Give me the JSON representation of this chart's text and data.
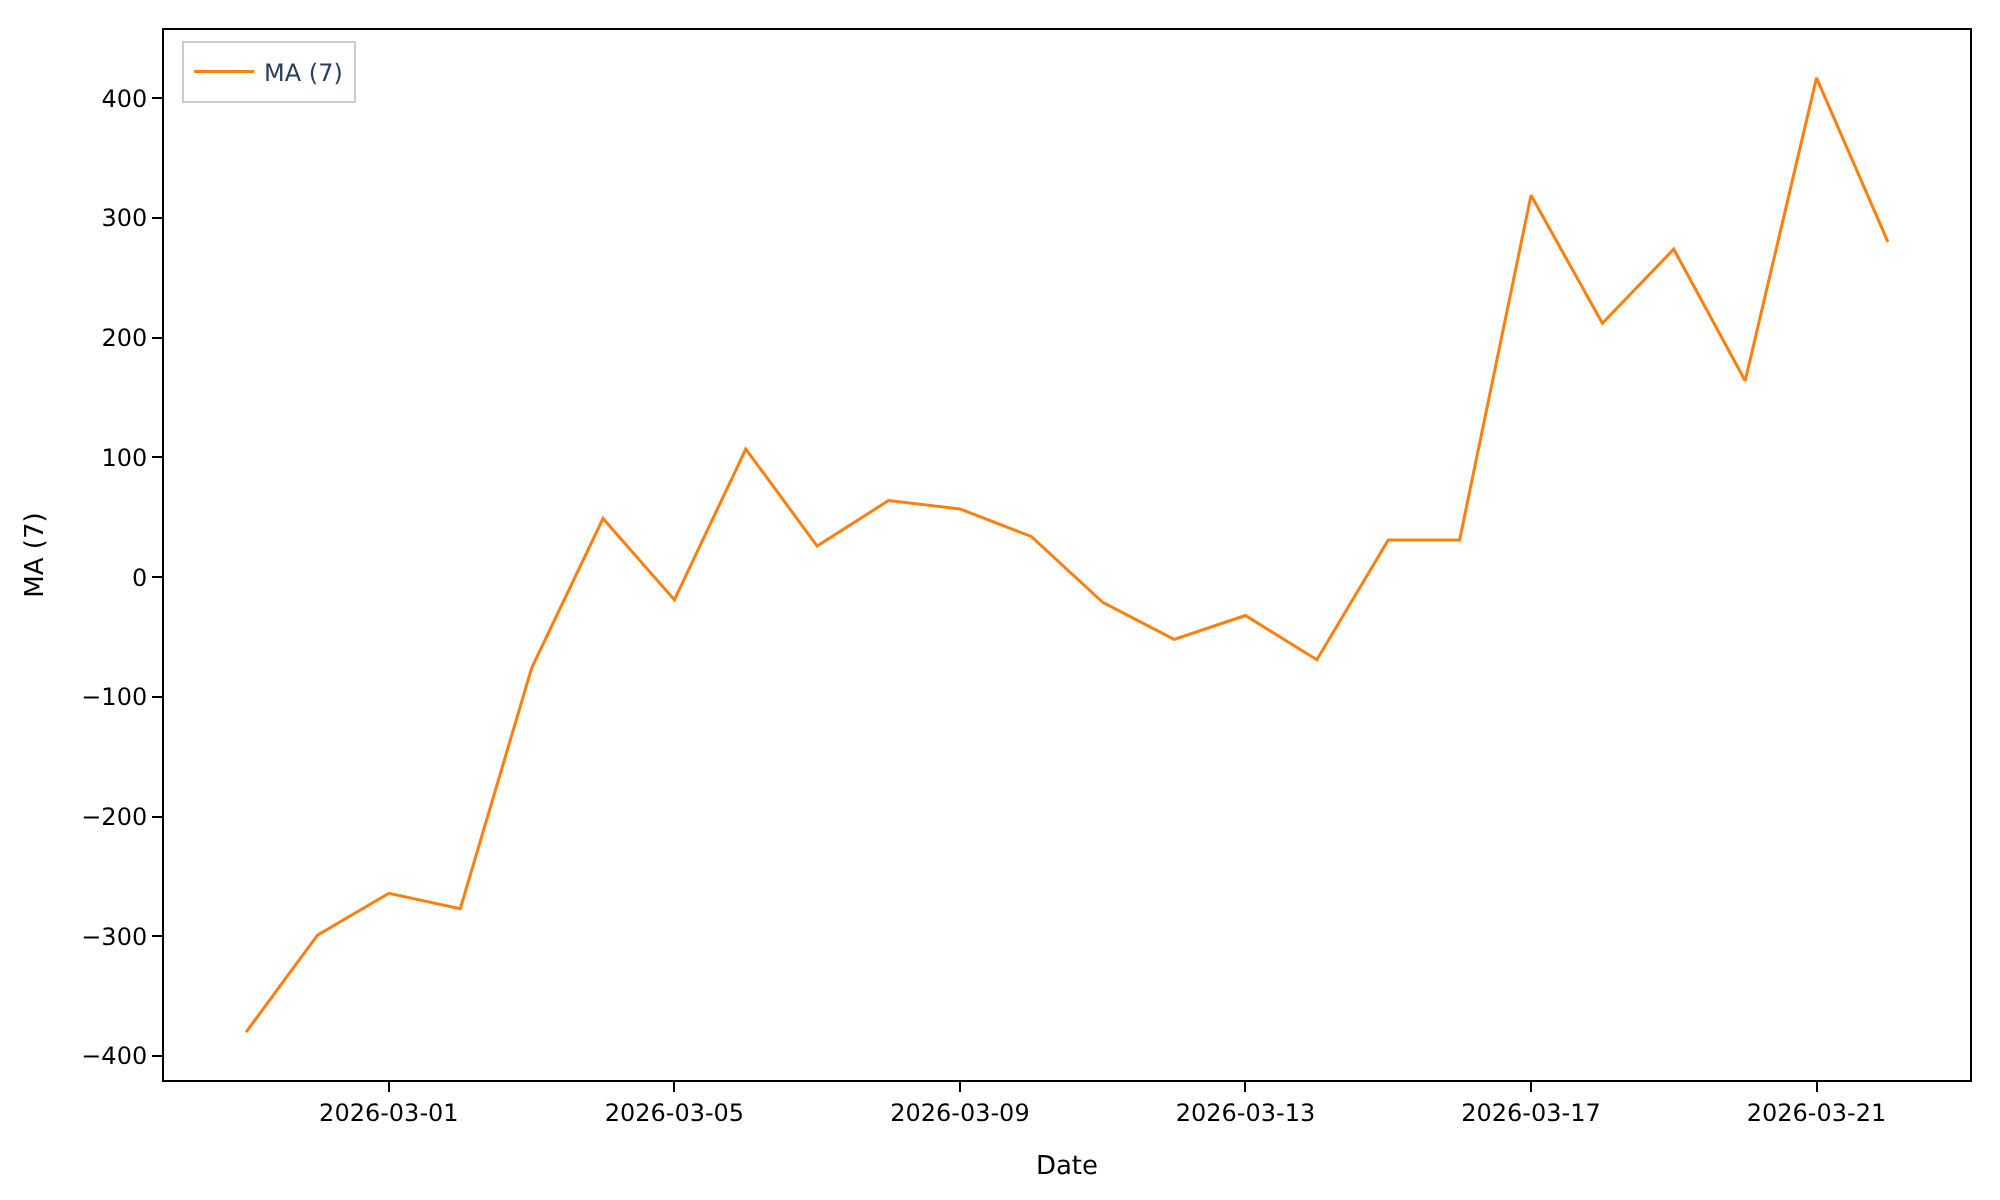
{
  "chart_data": {
    "type": "line",
    "xlabel": "Date",
    "ylabel": "MA (7)",
    "x": [
      "2026-02-27",
      "2026-02-28",
      "2026-03-01",
      "2026-03-02",
      "2026-03-03",
      "2026-03-04",
      "2026-03-05",
      "2026-03-06",
      "2026-03-07",
      "2026-03-08",
      "2026-03-09",
      "2026-03-10",
      "2026-03-11",
      "2026-03-12",
      "2026-03-13",
      "2026-03-14",
      "2026-03-15",
      "2026-03-16",
      "2026-03-17",
      "2026-03-18",
      "2026-03-19",
      "2026-03-20",
      "2026-03-21",
      "2026-03-22"
    ],
    "series": [
      {
        "name": "MA (7)",
        "color": "#ff7f0e",
        "values": [
          -380,
          -299,
          -264,
          -277,
          -76,
          49,
          -19,
          107,
          26,
          64,
          57,
          34,
          -21,
          -52,
          -32,
          -69,
          31,
          31,
          319,
          212,
          274,
          164,
          417,
          280
        ]
      }
    ],
    "xlim": [
      "2026-02-25T20:24",
      "2026-03-23T03:36"
    ],
    "xticks": [
      "2026-03-01",
      "2026-03-05",
      "2026-03-09",
      "2026-03-13",
      "2026-03-17",
      "2026-03-21"
    ],
    "ylim": [
      -420,
      457
    ],
    "yticks": [
      -400,
      -300,
      -200,
      -100,
      0,
      100,
      200,
      300,
      400
    ],
    "legend": "top left",
    "marker": "none",
    "line_style": "solid"
  }
}
